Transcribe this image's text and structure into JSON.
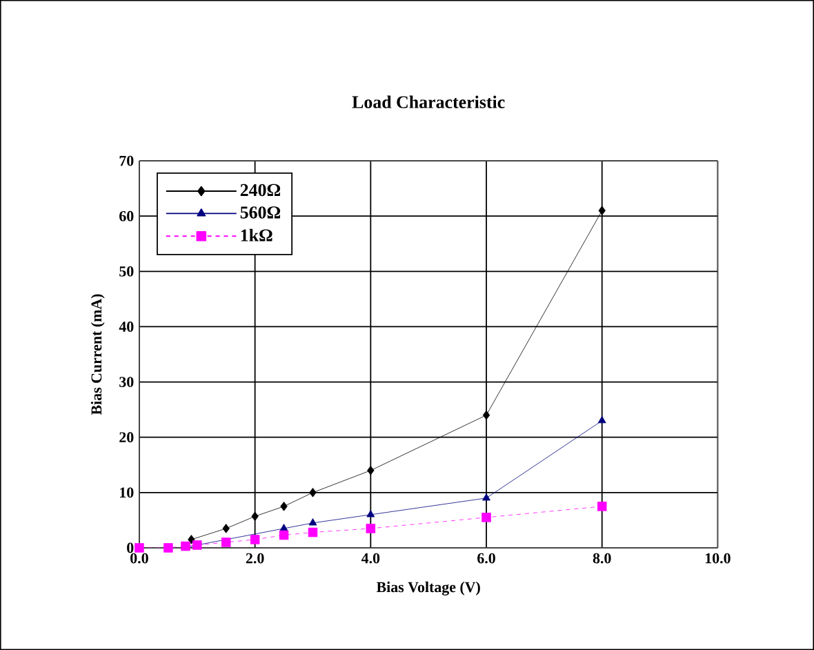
{
  "chart_data": {
    "type": "line",
    "title": "Load Characteristic",
    "xlabel": "Bias Voltage (V)",
    "ylabel": "Bias Current (mA)",
    "xlim": [
      0,
      10
    ],
    "ylim": [
      0,
      70
    ],
    "xticks": [
      {
        "value": 0,
        "label": "0.0"
      },
      {
        "value": 2,
        "label": "2.0"
      },
      {
        "value": 4,
        "label": "4.0"
      },
      {
        "value": 6,
        "label": "6.0"
      },
      {
        "value": 8,
        "label": "8.0"
      },
      {
        "value": 10,
        "label": "10.0"
      }
    ],
    "yticks": [
      0,
      10,
      20,
      30,
      40,
      50,
      60,
      70
    ],
    "grid": true,
    "legend": "top left",
    "series": [
      {
        "name": "240Ω",
        "color": "#000000",
        "marker": "diamond",
        "line_style": "solid",
        "x": [
          0.9,
          1.5,
          2.0,
          2.5,
          3.0,
          4.0,
          6.0,
          8.0
        ],
        "values": [
          1.5,
          3.5,
          5.7,
          7.5,
          10,
          14,
          24,
          61
        ]
      },
      {
        "name": "560Ω",
        "color": "#000080",
        "marker": "triangle",
        "line_style": "solid",
        "x": [
          0.8,
          1.0,
          2.5,
          3.0,
          4.0,
          6.0,
          8.0
        ],
        "values": [
          0,
          0.5,
          3.5,
          4.5,
          6,
          9,
          23
        ]
      },
      {
        "name": "1kΩ",
        "color": "#ff00ff",
        "marker": "square",
        "line_style": "dashed",
        "x": [
          0,
          0.5,
          0.8,
          1.0,
          1.5,
          2.0,
          2.5,
          3.0,
          4.0,
          6.0,
          8.0
        ],
        "values": [
          0,
          0,
          0.3,
          0.5,
          1,
          1.5,
          2.3,
          2.8,
          3.5,
          5.5,
          7.5
        ]
      }
    ]
  }
}
